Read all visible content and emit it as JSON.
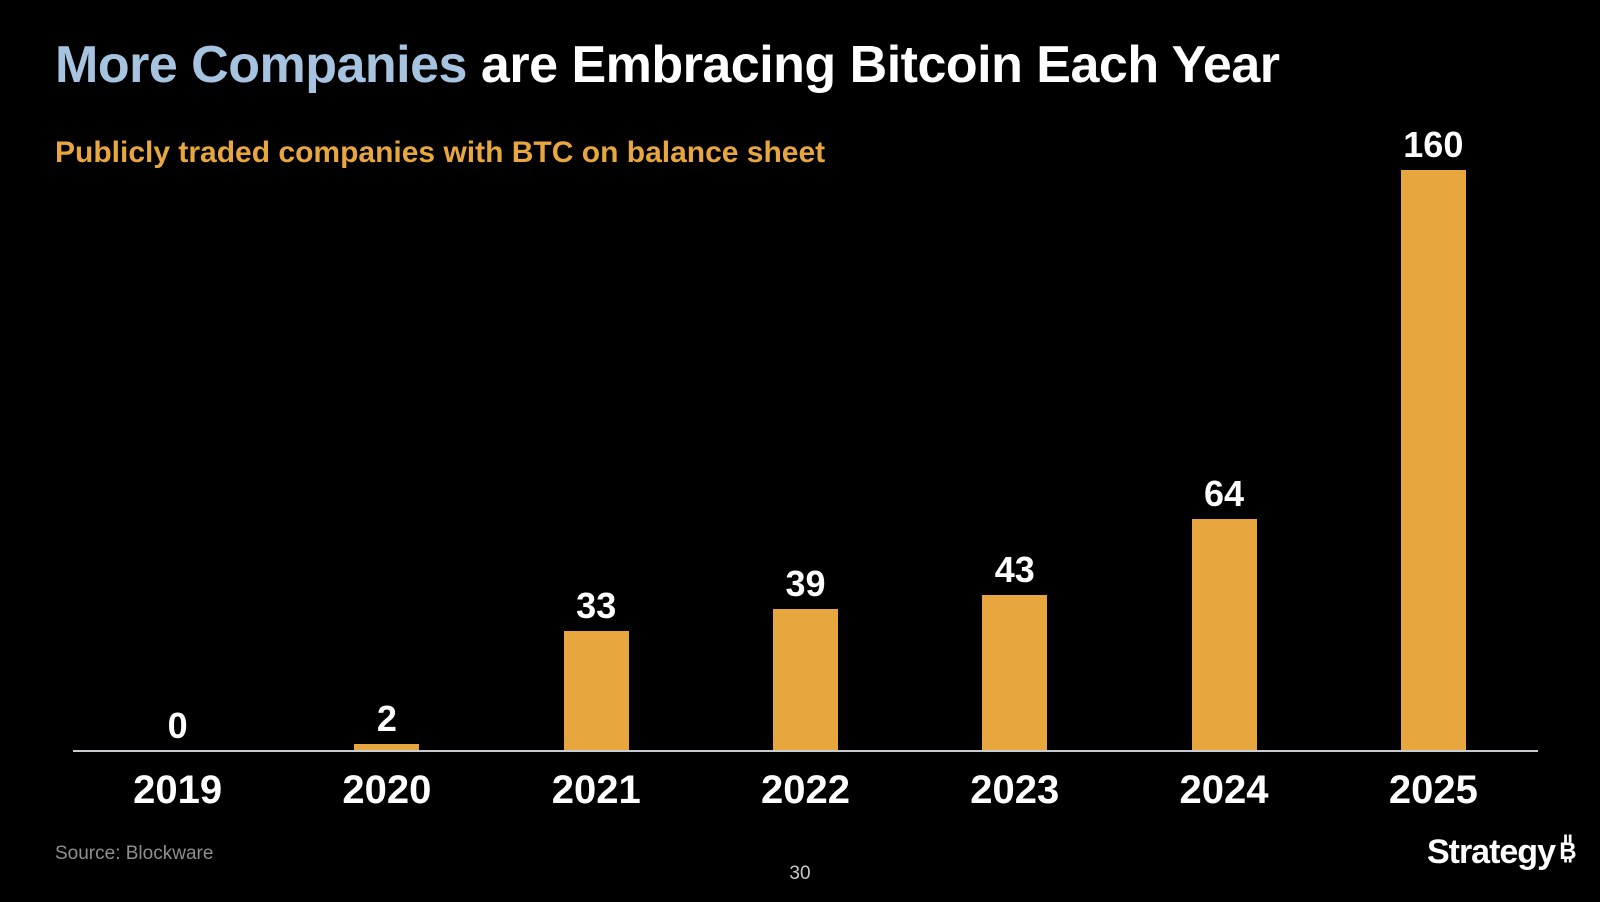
{
  "header": {
    "title_highlight": "More Companies",
    "title_rest": " are Embracing Bitcoin Each Year",
    "subtitle": "Publicly traded companies with BTC on balance sheet"
  },
  "chart_data": {
    "type": "bar",
    "categories": [
      "2019",
      "2020",
      "2021",
      "2022",
      "2023",
      "2024",
      "2025"
    ],
    "values": [
      0,
      2,
      33,
      39,
      43,
      64,
      160
    ],
    "title": "More Companies are Embracing Bitcoin Each Year",
    "subtitle": "Publicly traded companies with BTC on balance sheet",
    "xlabel": "",
    "ylabel": "",
    "ylim": [
      0,
      160
    ],
    "grid": false,
    "legend": false,
    "data_labels": true,
    "bar_color": "#E8A73E",
    "label_color": "#FFFFFF"
  },
  "footer": {
    "source": "Source: Blockware",
    "page_number": "30",
    "logo_text": "Strategy",
    "logo_symbol": "bitcoin-b"
  },
  "colors": {
    "bg": "#000000",
    "title_blue": "#A6C4DF",
    "title_white": "#FFFFFF",
    "gold": "#E8A73E",
    "axis_gray": "#C8CCCF",
    "source_gray": "#8F8F8F",
    "pagenum_gray": "#C9C9C9"
  }
}
